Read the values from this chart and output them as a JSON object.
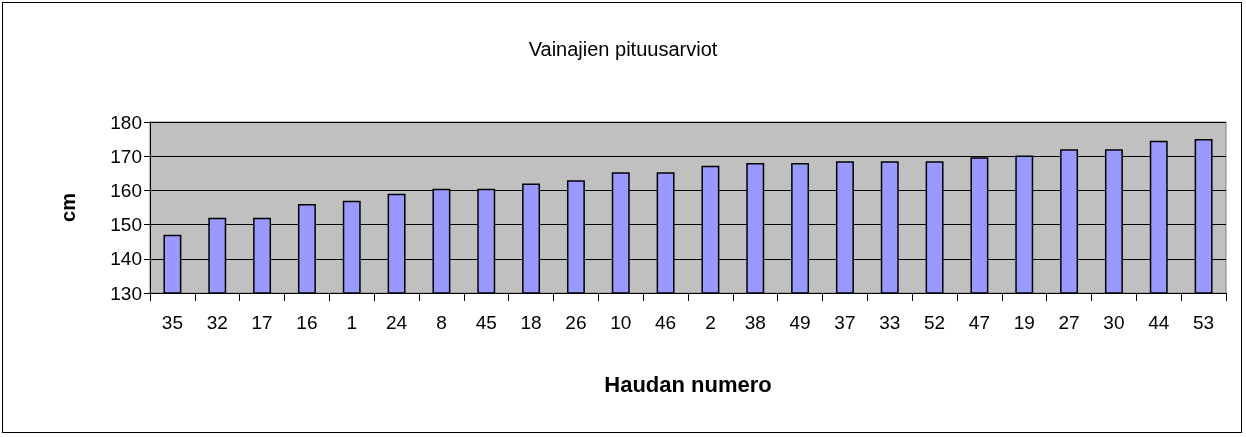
{
  "chart_data": {
    "type": "bar",
    "title": "Vainajien pituusarviot",
    "xlabel": "Haudan numero",
    "ylabel": "cm",
    "categories": [
      "35",
      "32",
      "17",
      "16",
      "1",
      "24",
      "8",
      "45",
      "18",
      "26",
      "10",
      "46",
      "2",
      "38",
      "49",
      "37",
      "33",
      "52",
      "47",
      "19",
      "27",
      "30",
      "44",
      "53"
    ],
    "values": [
      147,
      152,
      152,
      156,
      157,
      159,
      160.5,
      160.5,
      162,
      163,
      165.3,
      165.3,
      167.2,
      168,
      168,
      168.5,
      168.5,
      168.5,
      169.7,
      170.2,
      172,
      172,
      174.5,
      175
    ],
    "color": "#9999ff",
    "ylim": [
      130,
      180
    ],
    "yticks": [
      130,
      140,
      150,
      160,
      170,
      180
    ],
    "grid": "y"
  }
}
